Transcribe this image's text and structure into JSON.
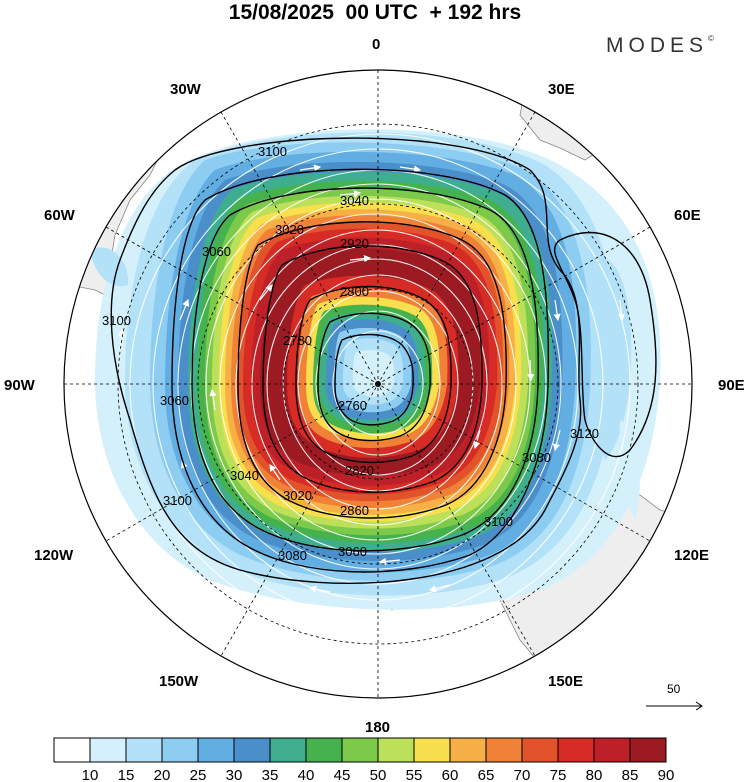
{
  "header": {
    "title": "15/08/2025  00 UTC  + 192 hrs",
    "brand": "MODES",
    "brand_mark": "©"
  },
  "map": {
    "projection": "south polar stereographic",
    "longitude_labels": {
      "top": "0",
      "top_right": "30E",
      "right_upper": "60E",
      "right": "90E",
      "right_lower": "120E",
      "bottom_right": "150E",
      "bottom": "180",
      "bottom_left": "150W",
      "left_lower": "120W",
      "left": "90W",
      "left_upper": "60W",
      "top_left": "30W"
    },
    "contour_labels": [
      "3100",
      "3040",
      "3020",
      "3060",
      "2920",
      "2800",
      "2780",
      "2760",
      "3120",
      "3080",
      "2820",
      "2860",
      "3100",
      "3060",
      "3080",
      "3040",
      "3100",
      "3020",
      "3060",
      "3100"
    ],
    "colors": {
      "land": "#eeeeee",
      "coast": "#888888"
    }
  },
  "reference_vector": {
    "value": "50"
  },
  "colorbar": {
    "ticks": [
      "10",
      "15",
      "20",
      "25",
      "30",
      "35",
      "40",
      "45",
      "50",
      "55",
      "60",
      "65",
      "70",
      "75",
      "80",
      "85",
      "90"
    ],
    "colors": [
      "#ffffff",
      "#d4f0fb",
      "#b3e2f8",
      "#8ecdf2",
      "#62aee3",
      "#4a8fc9",
      "#3fae8f",
      "#46b24d",
      "#7dc94a",
      "#bde05a",
      "#f7df4d",
      "#f7b046",
      "#f08238",
      "#e2532c",
      "#d72c25",
      "#bd2028",
      "#9c1b22"
    ]
  }
}
